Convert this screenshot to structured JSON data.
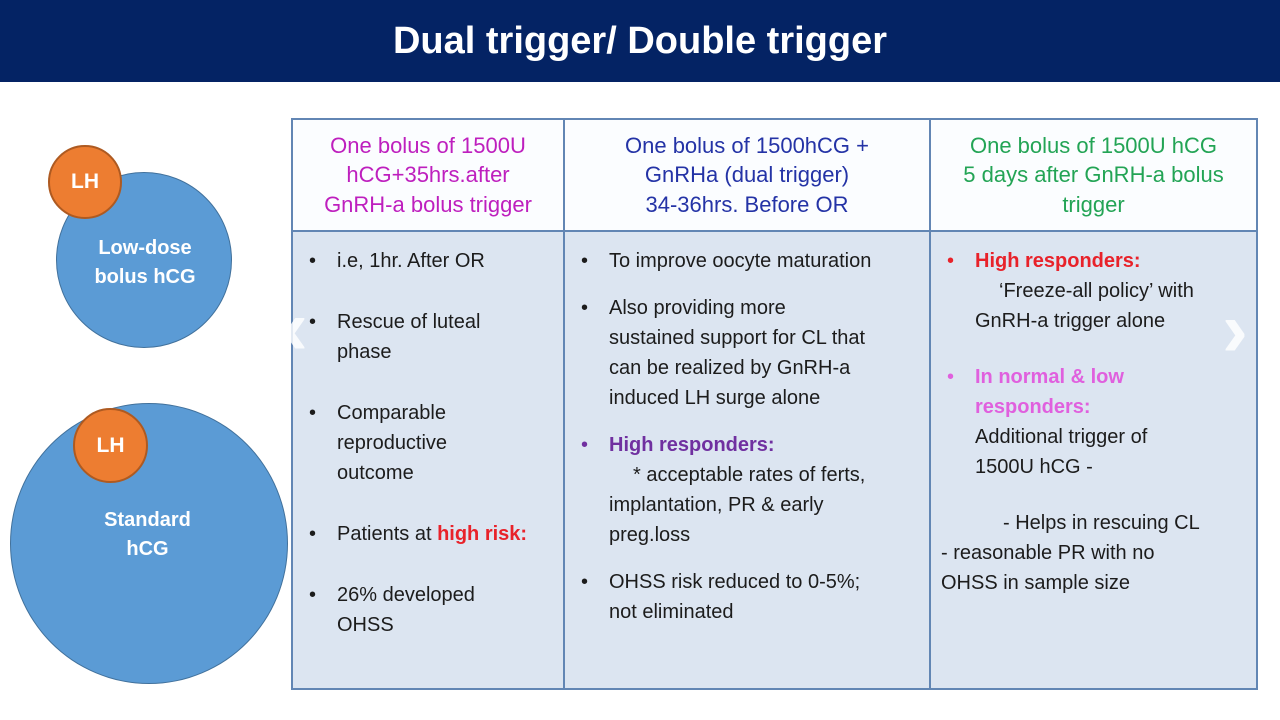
{
  "slide": {
    "title": "Dual trigger/ Double trigger"
  },
  "glyphs": {
    "bullet": "•",
    "prev": "‹",
    "next": "›"
  },
  "colors": {
    "banner": "#042364",
    "table_border": "#6286B4",
    "header_bg": "#FBFDFF",
    "body_bg": "#DCE5F1",
    "header_col1": "#BE1FBE",
    "header_col2": "#2433A6",
    "header_col3": "#23A455",
    "red": "#E8222A",
    "purple": "#7030A0",
    "pink": "#E060DE",
    "circle_blue": "#5B9BD5",
    "circle_orange": "#ED7D31"
  },
  "diagram": {
    "low_dose": {
      "badge": "LH",
      "label": "Low-dose\nbolus hCG"
    },
    "standard": {
      "badge": "LH",
      "label": "Standard\nhCG"
    }
  },
  "table": {
    "columns": [
      {
        "header": "One bolus of 1500U\nhCG+35hrs.after\nGnRH-a bolus trigger",
        "items": [
          {
            "text": "i.e, 1hr. After OR"
          },
          {
            "text": "Rescue of luteal\nphase"
          },
          {
            "text": "Comparable\nreproductive\noutcome"
          },
          {
            "prefix": "Patients at ",
            "highlight": "high risk:"
          },
          {
            "text": "26% developed\nOHSS"
          }
        ]
      },
      {
        "header": "One bolus of 1500hCG +\nGnRHa (dual trigger)\n34-36hrs. Before OR",
        "items": [
          {
            "text": "To improve oocyte maturation"
          },
          {
            "text": "Also providing more\nsustained support for CL that\ncan be realized by GnRH-a\ninduced LH surge alone"
          },
          {
            "heading": "High responders:",
            "sub": "* acceptable rates of ferts,\nimplantation, PR & early\npreg.loss"
          },
          {
            "text": "OHSS risk reduced to 0-5%;\nnot eliminated"
          }
        ]
      },
      {
        "header": "One bolus of 1500U hCG\n5 days after GnRH-a bolus\ntrigger",
        "items": [
          {
            "heading": "High responders:",
            "sub": "‘Freeze-all policy’ with\nGnRH-a trigger alone"
          },
          {
            "heading": "In normal & low\nresponders:",
            "sub": "Additional trigger of\n1500U hCG -"
          },
          {
            "dash1": "- Helps in rescuing CL",
            "dash2": "- reasonable PR with no\nOHSS in sample size"
          }
        ]
      }
    ]
  }
}
